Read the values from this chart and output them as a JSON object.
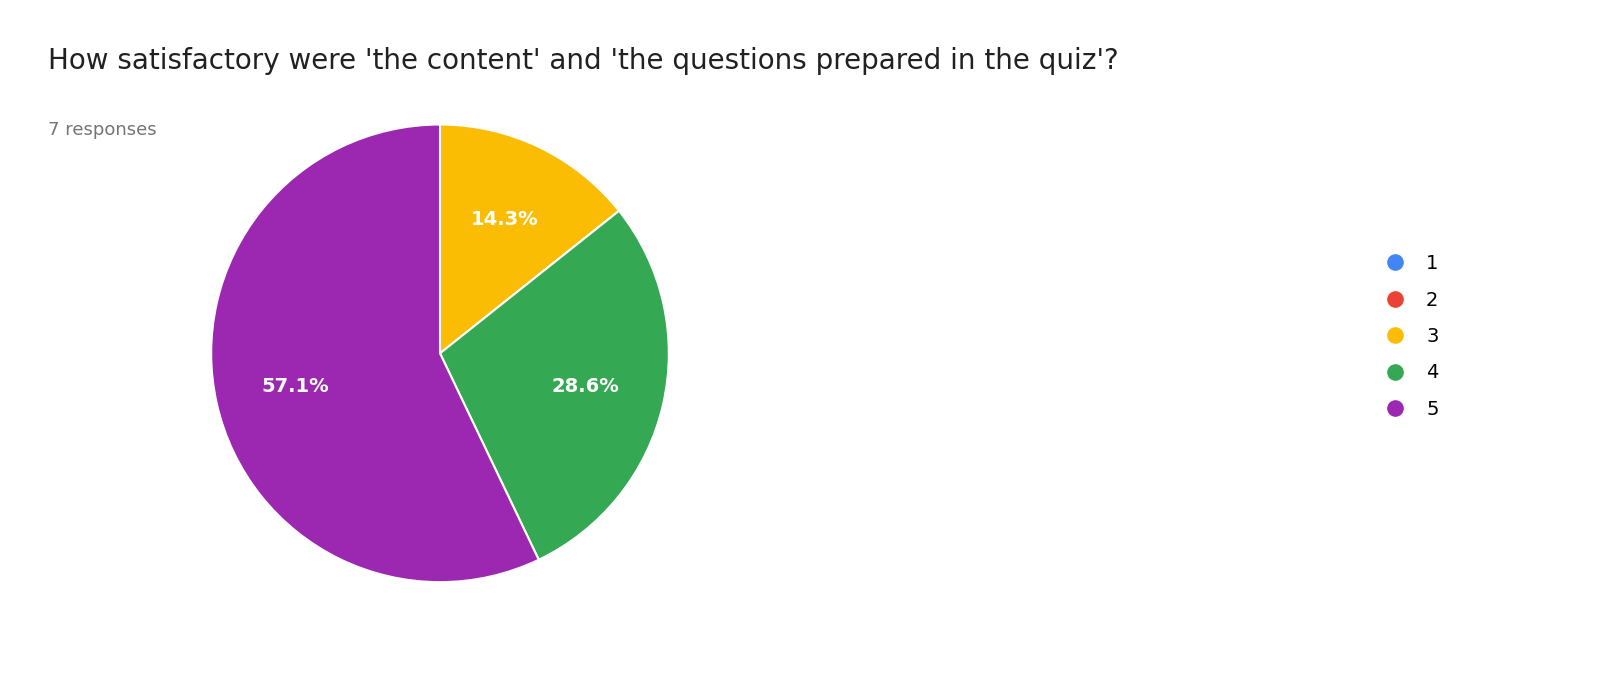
{
  "title": "How satisfactory were 'the content' and 'the questions prepared in the quiz'?",
  "subtitle": "7 responses",
  "slices": [
    0,
    0,
    14.3,
    28.6,
    57.1
  ],
  "labels": [
    "1",
    "2",
    "3",
    "4",
    "5"
  ],
  "colors": [
    "#4285F4",
    "#EA4335",
    "#FBBC04",
    "#34A853",
    "#9C27B0"
  ],
  "autopct_labels": [
    "",
    "",
    "14.3%",
    "28.6%",
    "57.1%"
  ],
  "title_fontsize": 20,
  "subtitle_fontsize": 13,
  "legend_fontsize": 14,
  "autopct_fontsize": 14,
  "background_color": "#ffffff",
  "text_color": "#212121"
}
